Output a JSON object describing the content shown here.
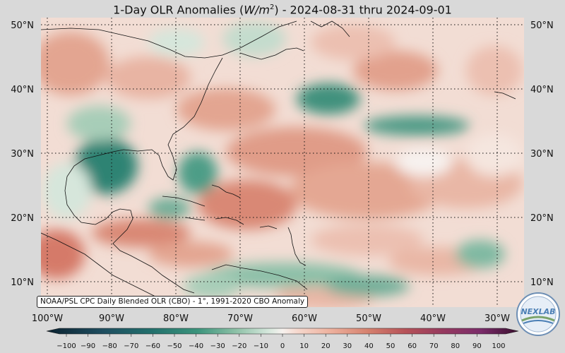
{
  "title": {
    "prefix": "1-Day OLR Anomalies (",
    "unit_symbol": "W/m",
    "unit_power": "2",
    "suffix": ") - 2024-08-31 thru 2024-09-01"
  },
  "map": {
    "lat_labels": [
      "50°N",
      "40°N",
      "30°N",
      "20°N",
      "10°N"
    ],
    "lon_labels": [
      "100°W",
      "90°W",
      "80°W",
      "70°W",
      "60°W",
      "50°W",
      "40°W",
      "30°W"
    ]
  },
  "source_note": "NOAA/PSL CPC Daily Blended OLR (CBO) - 1°, 1991-2020 CBO Anomaly",
  "logo_text": "NEXLAB",
  "colorbar": {
    "ticks": [
      "−100",
      "−90",
      "−80",
      "−70",
      "−60",
      "−50",
      "−40",
      "−30",
      "−20",
      "−10",
      "0",
      "10",
      "20",
      "30",
      "40",
      "50",
      "60",
      "70",
      "80",
      "90",
      "100"
    ],
    "colors": {
      "deep_negative": "#0b2a36",
      "negative": "#2f8a78",
      "light_negative": "#bcd9c8",
      "neutral": "#f7f2ef",
      "light_positive": "#efb9a6",
      "positive": "#c85a4a",
      "deep_positive": "#5a1a48"
    }
  }
}
